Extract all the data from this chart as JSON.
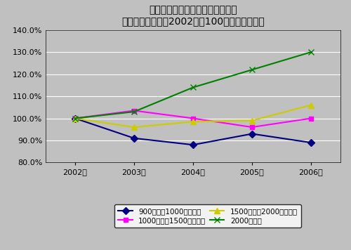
{
  "title_line1": "給与階級別給与所得者数・構成比",
  "title_line2": "（高給与者のみ・2002年を100％としたとき）",
  "x_labels": [
    "2002年",
    "2003年",
    "2004年",
    "2005年",
    "2006年"
  ],
  "x_values": [
    0,
    1,
    2,
    3,
    4
  ],
  "series": [
    {
      "label": "900万超～1000万円以下",
      "values": [
        100.0,
        91.0,
        88.0,
        93.0,
        89.0
      ],
      "color": "#000080",
      "marker": "D",
      "markersize": 5,
      "linestyle": "-",
      "linewidth": 1.5
    },
    {
      "label": "1000万超～1500万円以下",
      "values": [
        100.0,
        103.5,
        100.0,
        96.0,
        100.0
      ],
      "color": "#ff00ff",
      "marker": "s",
      "markersize": 5,
      "linestyle": "-",
      "linewidth": 1.5
    },
    {
      "label": "1500万超～2000万円以下",
      "values": [
        100.0,
        96.0,
        98.5,
        99.0,
        106.0
      ],
      "color": "#cccc00",
      "marker": "^",
      "markersize": 6,
      "linestyle": "-",
      "linewidth": 1.5
    },
    {
      "label": "2000万円超",
      "values": [
        100.0,
        103.0,
        114.0,
        122.0,
        130.0
      ],
      "color": "#008000",
      "marker": "x",
      "markersize": 6,
      "linestyle": "-",
      "linewidth": 1.5
    }
  ],
  "ylim": [
    80.0,
    140.0
  ],
  "yticks": [
    80.0,
    90.0,
    100.0,
    110.0,
    120.0,
    130.0,
    140.0
  ],
  "bg_color": "#c0c0c0",
  "plot_bg_color": "#c0c0c0",
  "legend_ncol": 2,
  "grid_color": "#ffffff",
  "title_fontsize": 10,
  "tick_fontsize": 8,
  "legend_fontsize": 7.5
}
